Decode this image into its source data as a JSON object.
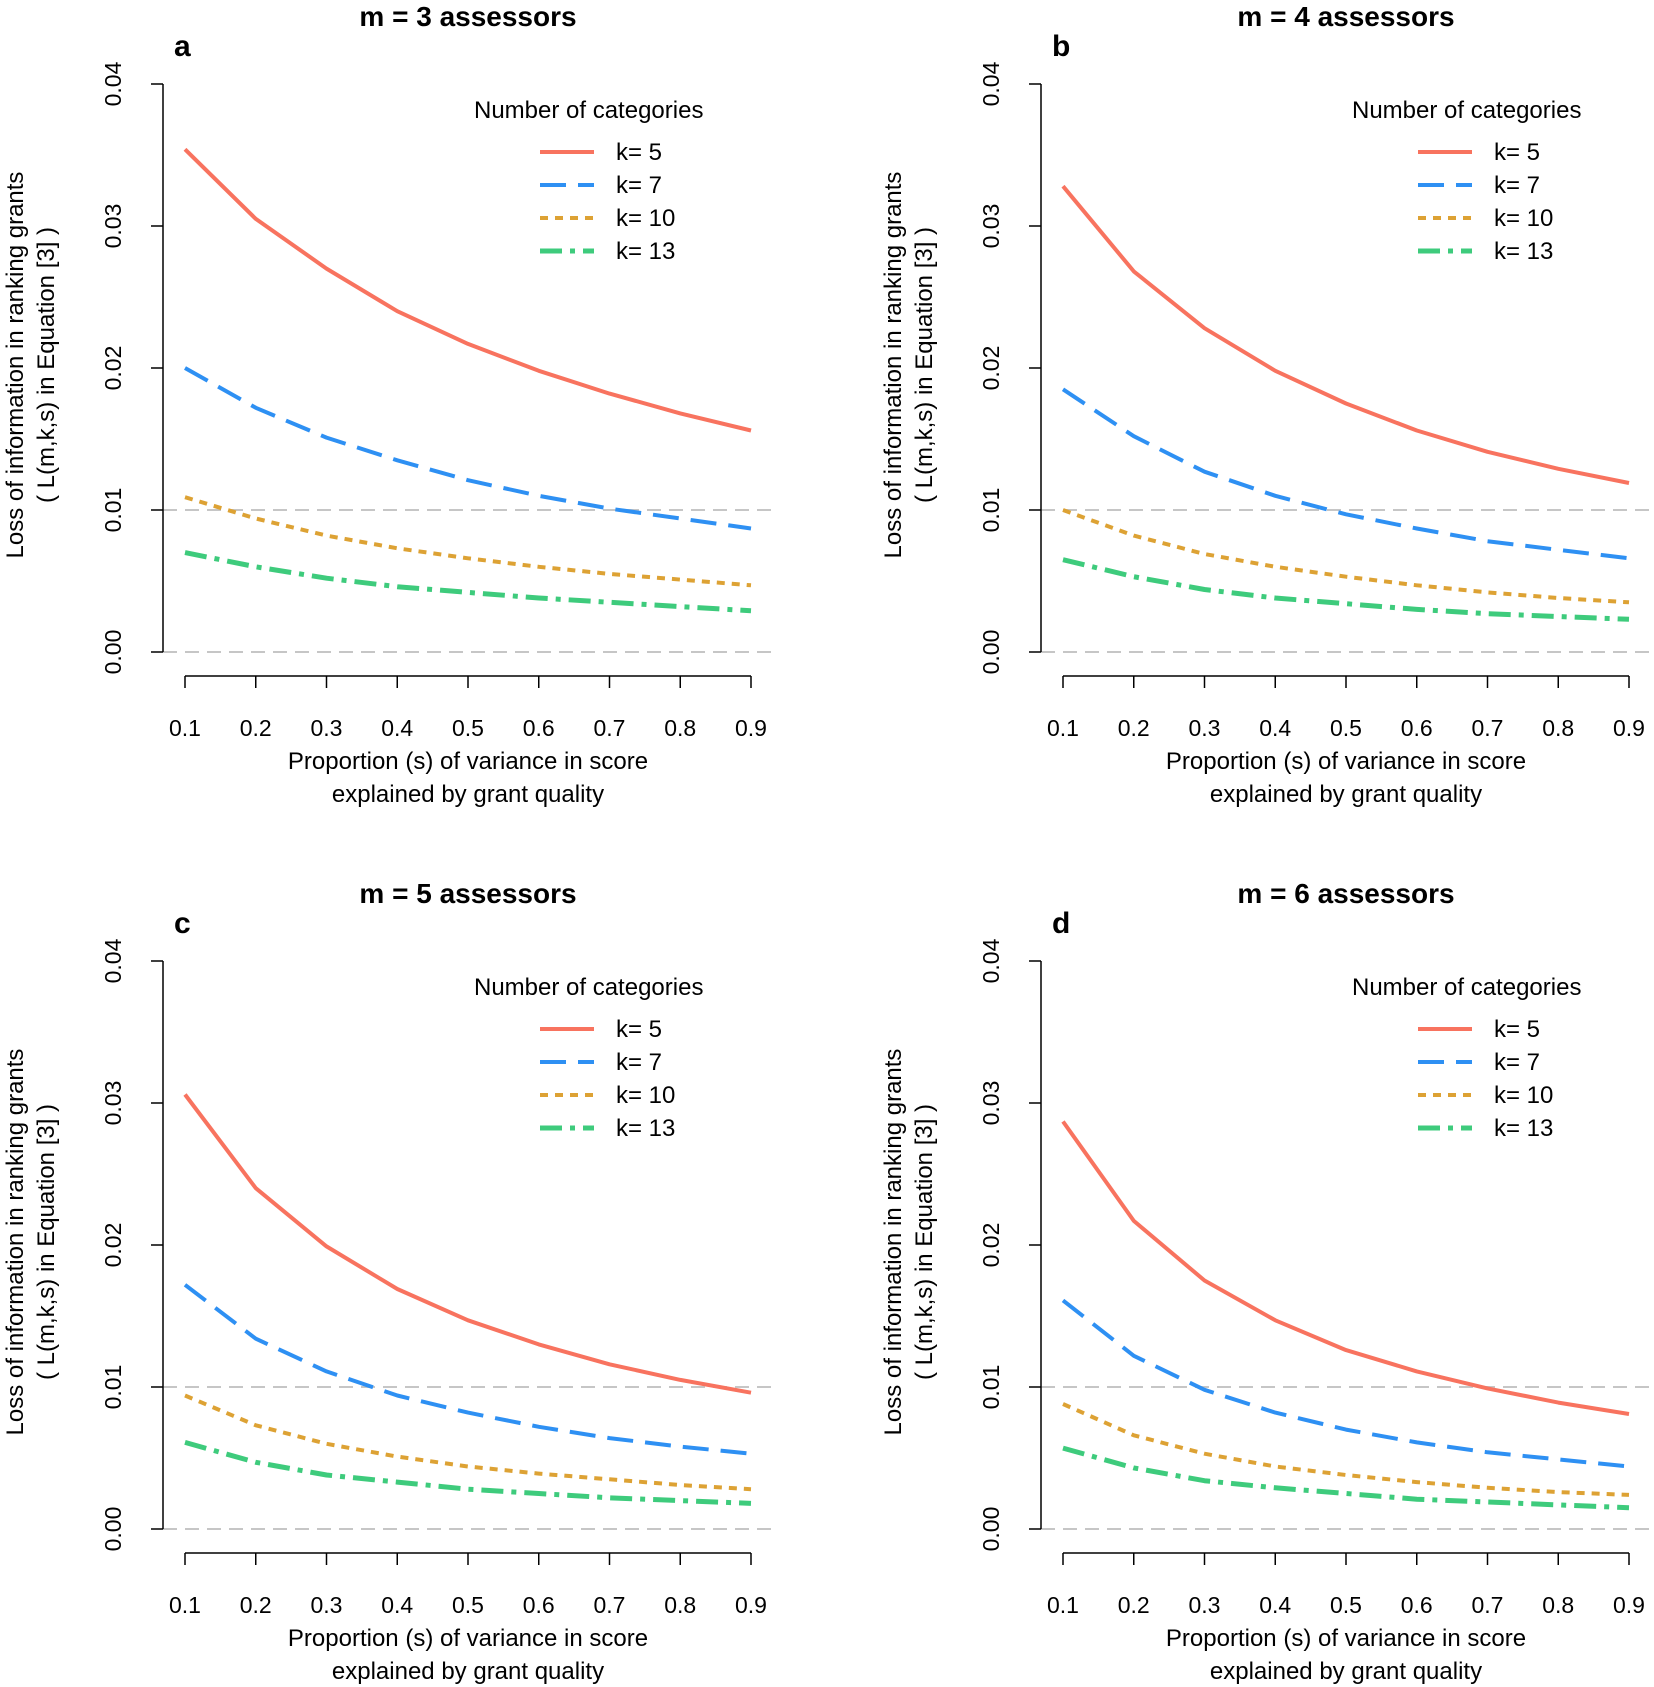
{
  "chart_data": [
    {
      "type": "line",
      "letter": "a",
      "title": "m = 3 assessors",
      "xlabel": [
        "Proportion (s) of variance in score",
        "explained by grant quality"
      ],
      "ylabel": [
        "Loss of information in ranking grants",
        "( L(m,k,s) in Equation [3] )"
      ],
      "x": [
        0.1,
        0.2,
        0.3,
        0.4,
        0.5,
        0.6,
        0.7,
        0.8,
        0.9
      ],
      "xticks": [
        "0.1",
        "0.2",
        "0.3",
        "0.4",
        "0.5",
        "0.6",
        "0.7",
        "0.8",
        "0.9"
      ],
      "yticks": [
        "0.00",
        "0.01",
        "0.02",
        "0.03",
        "0.04"
      ],
      "ylim": [
        0,
        0.04
      ],
      "reference_lines": [
        0,
        0.01
      ],
      "legend_title": "Number of categories",
      "legend_position": "top-right",
      "series": [
        {
          "name": "k= 5",
          "values": [
            0.0354,
            0.0305,
            0.027,
            0.024,
            0.0217,
            0.0198,
            0.0182,
            0.0168,
            0.0156
          ]
        },
        {
          "name": "k= 7",
          "values": [
            0.02,
            0.0172,
            0.0151,
            0.0135,
            0.0121,
            0.011,
            0.0101,
            0.0094,
            0.0087
          ]
        },
        {
          "name": "k= 10",
          "values": [
            0.0109,
            0.0094,
            0.0082,
            0.0073,
            0.0066,
            0.006,
            0.0055,
            0.0051,
            0.0047
          ]
        },
        {
          "name": "k= 13",
          "values": [
            0.007,
            0.006,
            0.0052,
            0.0046,
            0.0042,
            0.0038,
            0.0035,
            0.0032,
            0.0029
          ]
        }
      ]
    },
    {
      "type": "line",
      "letter": "b",
      "title": "m = 4 assessors",
      "xlabel": [
        "Proportion (s) of variance in score",
        "explained by grant quality"
      ],
      "ylabel": [
        "Loss of information in ranking grants",
        "( L(m,k,s) in Equation [3] )"
      ],
      "x": [
        0.1,
        0.2,
        0.3,
        0.4,
        0.5,
        0.6,
        0.7,
        0.8,
        0.9
      ],
      "xticks": [
        "0.1",
        "0.2",
        "0.3",
        "0.4",
        "0.5",
        "0.6",
        "0.7",
        "0.8",
        "0.9"
      ],
      "yticks": [
        "0.00",
        "0.01",
        "0.02",
        "0.03",
        "0.04"
      ],
      "ylim": [
        0,
        0.04
      ],
      "reference_lines": [
        0,
        0.01
      ],
      "legend_title": "Number of categories",
      "legend_position": "top-right",
      "series": [
        {
          "name": "k= 5",
          "values": [
            0.0328,
            0.0268,
            0.0228,
            0.0198,
            0.0175,
            0.0156,
            0.0141,
            0.0129,
            0.0119
          ]
        },
        {
          "name": "k= 7",
          "values": [
            0.0185,
            0.0152,
            0.0127,
            0.011,
            0.0097,
            0.0087,
            0.0078,
            0.0072,
            0.0066
          ]
        },
        {
          "name": "k= 10",
          "values": [
            0.01,
            0.0082,
            0.0069,
            0.006,
            0.0053,
            0.0047,
            0.0042,
            0.0038,
            0.0035
          ]
        },
        {
          "name": "k= 13",
          "values": [
            0.0065,
            0.0053,
            0.0044,
            0.0038,
            0.0034,
            0.003,
            0.0027,
            0.0025,
            0.0023
          ]
        }
      ]
    },
    {
      "type": "line",
      "letter": "c",
      "title": "m = 5 assessors",
      "xlabel": [
        "Proportion (s) of variance in score",
        "explained by grant quality"
      ],
      "ylabel": [
        "Loss of information in ranking grants",
        "( L(m,k,s) in Equation [3] )"
      ],
      "x": [
        0.1,
        0.2,
        0.3,
        0.4,
        0.5,
        0.6,
        0.7,
        0.8,
        0.9
      ],
      "xticks": [
        "0.1",
        "0.2",
        "0.3",
        "0.4",
        "0.5",
        "0.6",
        "0.7",
        "0.8",
        "0.9"
      ],
      "yticks": [
        "0.00",
        "0.01",
        "0.02",
        "0.03",
        "0.04"
      ],
      "ylim": [
        0,
        0.04
      ],
      "reference_lines": [
        0,
        0.01
      ],
      "legend_title": "Number of categories",
      "legend_position": "top-right",
      "series": [
        {
          "name": "k= 5",
          "values": [
            0.0306,
            0.024,
            0.0199,
            0.0169,
            0.0147,
            0.013,
            0.0116,
            0.0105,
            0.0096
          ]
        },
        {
          "name": "k= 7",
          "values": [
            0.0172,
            0.0134,
            0.0111,
            0.0094,
            0.0082,
            0.0072,
            0.0064,
            0.0058,
            0.0053
          ]
        },
        {
          "name": "k= 10",
          "values": [
            0.0094,
            0.0073,
            0.006,
            0.0051,
            0.0044,
            0.0039,
            0.0035,
            0.0031,
            0.0028
          ]
        },
        {
          "name": "k= 13",
          "values": [
            0.0061,
            0.0047,
            0.0038,
            0.0033,
            0.0028,
            0.0025,
            0.0022,
            0.002,
            0.0018
          ]
        }
      ]
    },
    {
      "type": "line",
      "letter": "d",
      "title": "m = 6 assessors",
      "xlabel": [
        "Proportion (s) of variance in score",
        "explained by grant quality"
      ],
      "ylabel": [
        "Loss of information in ranking grants",
        "( L(m,k,s) in Equation [3] )"
      ],
      "x": [
        0.1,
        0.2,
        0.3,
        0.4,
        0.5,
        0.6,
        0.7,
        0.8,
        0.9
      ],
      "xticks": [
        "0.1",
        "0.2",
        "0.3",
        "0.4",
        "0.5",
        "0.6",
        "0.7",
        "0.8",
        "0.9"
      ],
      "yticks": [
        "0.00",
        "0.01",
        "0.02",
        "0.03",
        "0.04"
      ],
      "ylim": [
        0,
        0.04
      ],
      "reference_lines": [
        0,
        0.01
      ],
      "legend_title": "Number of categories",
      "legend_position": "top-right",
      "series": [
        {
          "name": "k= 5",
          "values": [
            0.0287,
            0.0217,
            0.0175,
            0.0147,
            0.0126,
            0.0111,
            0.0099,
            0.0089,
            0.0081
          ]
        },
        {
          "name": "k= 7",
          "values": [
            0.0161,
            0.0122,
            0.0098,
            0.0082,
            0.007,
            0.0061,
            0.0054,
            0.0049,
            0.0044
          ]
        },
        {
          "name": "k= 10",
          "values": [
            0.0088,
            0.0066,
            0.0053,
            0.0044,
            0.0038,
            0.0033,
            0.0029,
            0.0026,
            0.0024
          ]
        },
        {
          "name": "k= 13",
          "values": [
            0.0057,
            0.0043,
            0.0034,
            0.0029,
            0.0025,
            0.0021,
            0.0019,
            0.0017,
            0.0015
          ]
        }
      ]
    }
  ],
  "series_styles": [
    {
      "color": "#f8735f",
      "dash": "none",
      "width": 4
    },
    {
      "color": "#2e90f3",
      "dash": "26,12",
      "width": 4
    },
    {
      "color": "#dda234",
      "dash": "8,7",
      "width": 4
    },
    {
      "color": "#3ecb7c",
      "dash": "22,8,5,8",
      "width": 5
    }
  ],
  "reference_line_color": "#c6c6c6"
}
